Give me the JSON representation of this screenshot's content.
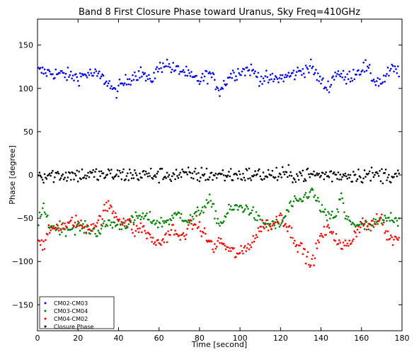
{
  "chart_data": {
    "type": "scatter",
    "title": "Band 8 First Closure Phase toward Uranus, Sky Freq=410GHz",
    "xlabel": "Time [second]",
    "ylabel": "Phase [degree]",
    "xlim": [
      0,
      180
    ],
    "ylim": [
      -180,
      180
    ],
    "xticks": [
      0,
      20,
      40,
      60,
      80,
      100,
      120,
      140,
      160,
      180
    ],
    "yticks": [
      150,
      100,
      50,
      0,
      -50,
      -100,
      -150
    ],
    "x_tick_labels": [
      "0",
      "20",
      "40",
      "60",
      "80",
      "100",
      "120",
      "140",
      "160",
      "180"
    ],
    "y_tick_labels": [
      "150",
      "100",
      "50",
      "0",
      "−50",
      "−100",
      "−150"
    ],
    "grid": false,
    "legend_position": "lower-left",
    "sampling": {
      "x_start": 0.5,
      "x_end": 178.5,
      "x_step": 0.5,
      "points_per_series": 357
    },
    "series": [
      {
        "name": "CM02-CM03",
        "color": "#0000ff",
        "profile_x": [
          0,
          10,
          20,
          25,
          30,
          35,
          38,
          42,
          48,
          52,
          55,
          60,
          63,
          67,
          72,
          76,
          80,
          85,
          90,
          95,
          100,
          105,
          110,
          115,
          120,
          125,
          130,
          135,
          140,
          143,
          148,
          152,
          158,
          162,
          166,
          170,
          175,
          178
        ],
        "profile_y": [
          120,
          117,
          113,
          117,
          115,
          107,
          95,
          105,
          116,
          118,
          107,
          123,
          130,
          122,
          120,
          112,
          109,
          117,
          98,
          115,
          120,
          122,
          112,
          110,
          112,
          115,
          120,
          125,
          108,
          100,
          120,
          110,
          120,
          125,
          110,
          107,
          122,
          120
        ],
        "noise": 4
      },
      {
        "name": "CM03-CM04",
        "color": "#008000",
        "profile_x": [
          0,
          3,
          6,
          10,
          15,
          20,
          25,
          30,
          35,
          40,
          45,
          50,
          55,
          60,
          65,
          70,
          75,
          80,
          85,
          88,
          90,
          95,
          100,
          105,
          110,
          115,
          120,
          125,
          130,
          135,
          140,
          143,
          148,
          150,
          152,
          158,
          163,
          168,
          172,
          175,
          178
        ],
        "profile_y": [
          -55,
          -40,
          -58,
          -62,
          -62,
          -60,
          -63,
          -66,
          -55,
          -58,
          -56,
          -48,
          -50,
          -56,
          -52,
          -45,
          -53,
          -42,
          -30,
          -46,
          -58,
          -40,
          -37,
          -40,
          -55,
          -58,
          -58,
          -35,
          -30,
          -18,
          -38,
          -50,
          -45,
          -22,
          -50,
          -58,
          -60,
          -55,
          -52,
          -48,
          -52
        ],
        "noise": 3.5
      },
      {
        "name": "CM04-CM02",
        "color": "#ff0000",
        "profile_x": [
          0,
          3,
          6,
          10,
          15,
          18,
          22,
          25,
          30,
          33,
          35,
          40,
          45,
          48,
          52,
          55,
          60,
          63,
          67,
          70,
          73,
          78,
          80,
          85,
          88,
          90,
          95,
          100,
          104,
          108,
          112,
          116,
          120,
          124,
          128,
          132,
          135,
          140,
          145,
          150,
          155,
          160,
          165,
          170,
          172,
          175,
          178
        ],
        "profile_y": [
          -70,
          -82,
          -65,
          -58,
          -60,
          -52,
          -60,
          -60,
          -55,
          -42,
          -35,
          -50,
          -55,
          -65,
          -60,
          -72,
          -80,
          -72,
          -62,
          -75,
          -65,
          -55,
          -60,
          -78,
          -85,
          -75,
          -88,
          -92,
          -82,
          -70,
          -55,
          -60,
          -45,
          -62,
          -78,
          -90,
          -105,
          -70,
          -62,
          -85,
          -75,
          -55,
          -60,
          -48,
          -68,
          -75,
          -70
        ],
        "noise": 4
      },
      {
        "name": "Closure Phase",
        "color": "#000000",
        "profile_x": [
          0,
          178
        ],
        "profile_y": [
          0,
          0
        ],
        "noise": 4.5
      }
    ]
  }
}
